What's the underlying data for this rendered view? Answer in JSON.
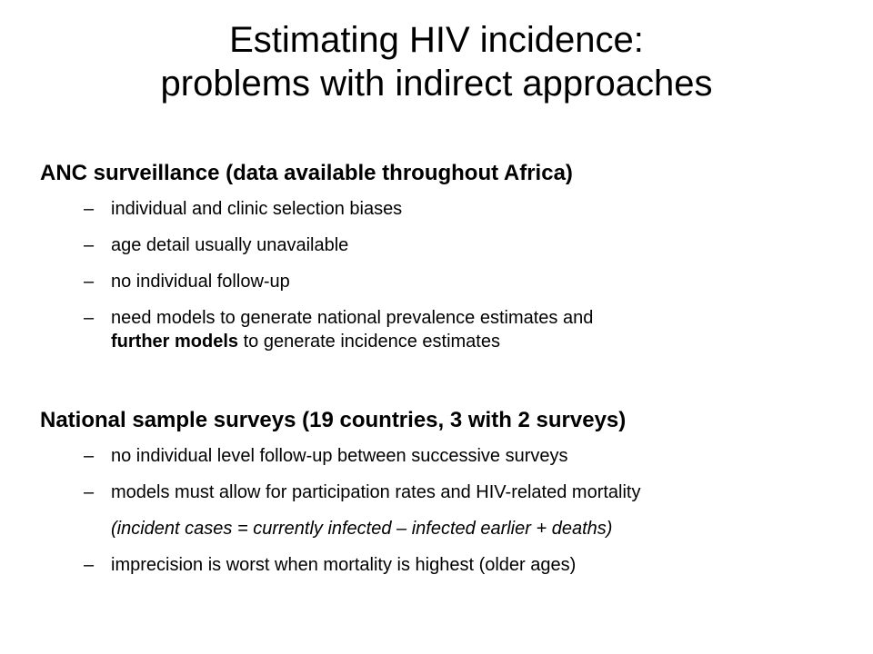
{
  "title": {
    "line1": "Estimating HIV incidence:",
    "line2": "problems with indirect approaches"
  },
  "anc": {
    "heading": "ANC surveillance (data available throughout Africa)",
    "dash": "–",
    "items": [
      "individual and clinic selection biases",
      "age detail usually unavailable",
      "no individual follow-up"
    ],
    "item4": {
      "line1": "need models to generate national prevalence estimates and",
      "bold": "further models",
      "rest": " to generate incidence estimates"
    }
  },
  "national": {
    "heading": "National sample surveys (19 countries, 3 with 2 surveys)",
    "dash": "–",
    "items": [
      "no individual level follow-up between successive surveys",
      "models must allow for participation rates and HIV-related mortality",
      "imprecision is worst when mortality is highest (older ages)"
    ],
    "formula": "(incident cases = currently infected – infected earlier + deaths)"
  }
}
